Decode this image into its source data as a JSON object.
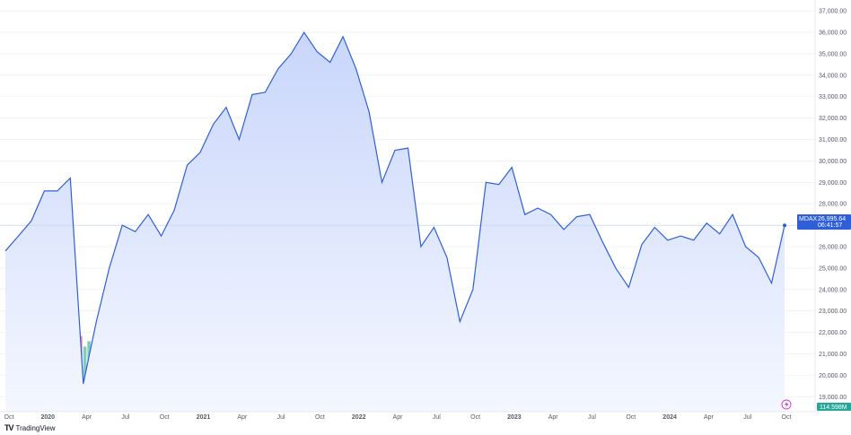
{
  "brand": {
    "mark": "TV",
    "name": "TradingView"
  },
  "colors": {
    "line": "#2f5fd8",
    "area_top": "#c9d6fb",
    "area_bottom": "#f4f7ff",
    "vol_up": "#7fcdbd",
    "vol_down": "#f29a9a",
    "badge": "#2f5fd8",
    "badge_vol": "#26a69a",
    "grid": "#e9ecf1"
  },
  "chart_data": {
    "type": "line",
    "title": "",
    "symbol": "MDAX",
    "last_price": "26,995.64",
    "countdown": "06:41:57",
    "volume_label": "114.598M",
    "x_tick_labels": [
      "Oct",
      "2020",
      "Apr",
      "Jul",
      "Oct",
      "2021",
      "Apr",
      "Jul",
      "Oct",
      "2022",
      "Apr",
      "Jul",
      "Oct",
      "2023",
      "Apr",
      "Jul",
      "Oct",
      "2024",
      "Apr",
      "Jul",
      "Oct"
    ],
    "y_tick_labels": [
      "37,000.00",
      "36,000.00",
      "35,000.00",
      "34,000.00",
      "33,000.00",
      "32,000.00",
      "31,000.00",
      "30,000.00",
      "29,000.00",
      "28,000.00",
      "27,000.00",
      "26,000.00",
      "25,000.00",
      "24,000.00",
      "23,000.00",
      "22,000.00",
      "21,000.00",
      "20,000.00",
      "19,000.00"
    ],
    "ylim": [
      18300,
      37300
    ],
    "price_series": {
      "name": "MDAX",
      "x": [
        "2019-09",
        "2019-10",
        "2019-11",
        "2019-12",
        "2020-01",
        "2020-02",
        "2020-03",
        "2020-04",
        "2020-05",
        "2020-06",
        "2020-07",
        "2020-08",
        "2020-09",
        "2020-10",
        "2020-11",
        "2020-12",
        "2021-01",
        "2021-02",
        "2021-03",
        "2021-04",
        "2021-05",
        "2021-06",
        "2021-07",
        "2021-08",
        "2021-09",
        "2021-10",
        "2021-11",
        "2021-12",
        "2022-01",
        "2022-02",
        "2022-03",
        "2022-04",
        "2022-05",
        "2022-06",
        "2022-07",
        "2022-08",
        "2022-09",
        "2022-10",
        "2022-11",
        "2022-12",
        "2023-01",
        "2023-02",
        "2023-03",
        "2023-04",
        "2023-05",
        "2023-06",
        "2023-07",
        "2023-08",
        "2023-09",
        "2023-10",
        "2023-11",
        "2023-12",
        "2024-01",
        "2024-02",
        "2024-03",
        "2024-04",
        "2024-05",
        "2024-06",
        "2024-07",
        "2024-08",
        "2024-09"
      ],
      "y": [
        25800,
        26500,
        27200,
        28600,
        28600,
        29200,
        19600,
        22500,
        25000,
        27000,
        26700,
        27500,
        26500,
        27700,
        29800,
        30400,
        31700,
        32500,
        31000,
        33100,
        33200,
        34300,
        35000,
        36000,
        35100,
        34600,
        35800,
        34300,
        32300,
        29000,
        30500,
        30600,
        26000,
        26900,
        25500,
        22500,
        24000,
        29000,
        28900,
        29700,
        27500,
        27800,
        27500,
        26800,
        27400,
        27500,
        26200,
        25000,
        24100,
        26100,
        26900,
        26300,
        26500,
        26300,
        27100,
        26600,
        27500,
        26000,
        25500,
        24300,
        26995.64
      ]
    }
  }
}
